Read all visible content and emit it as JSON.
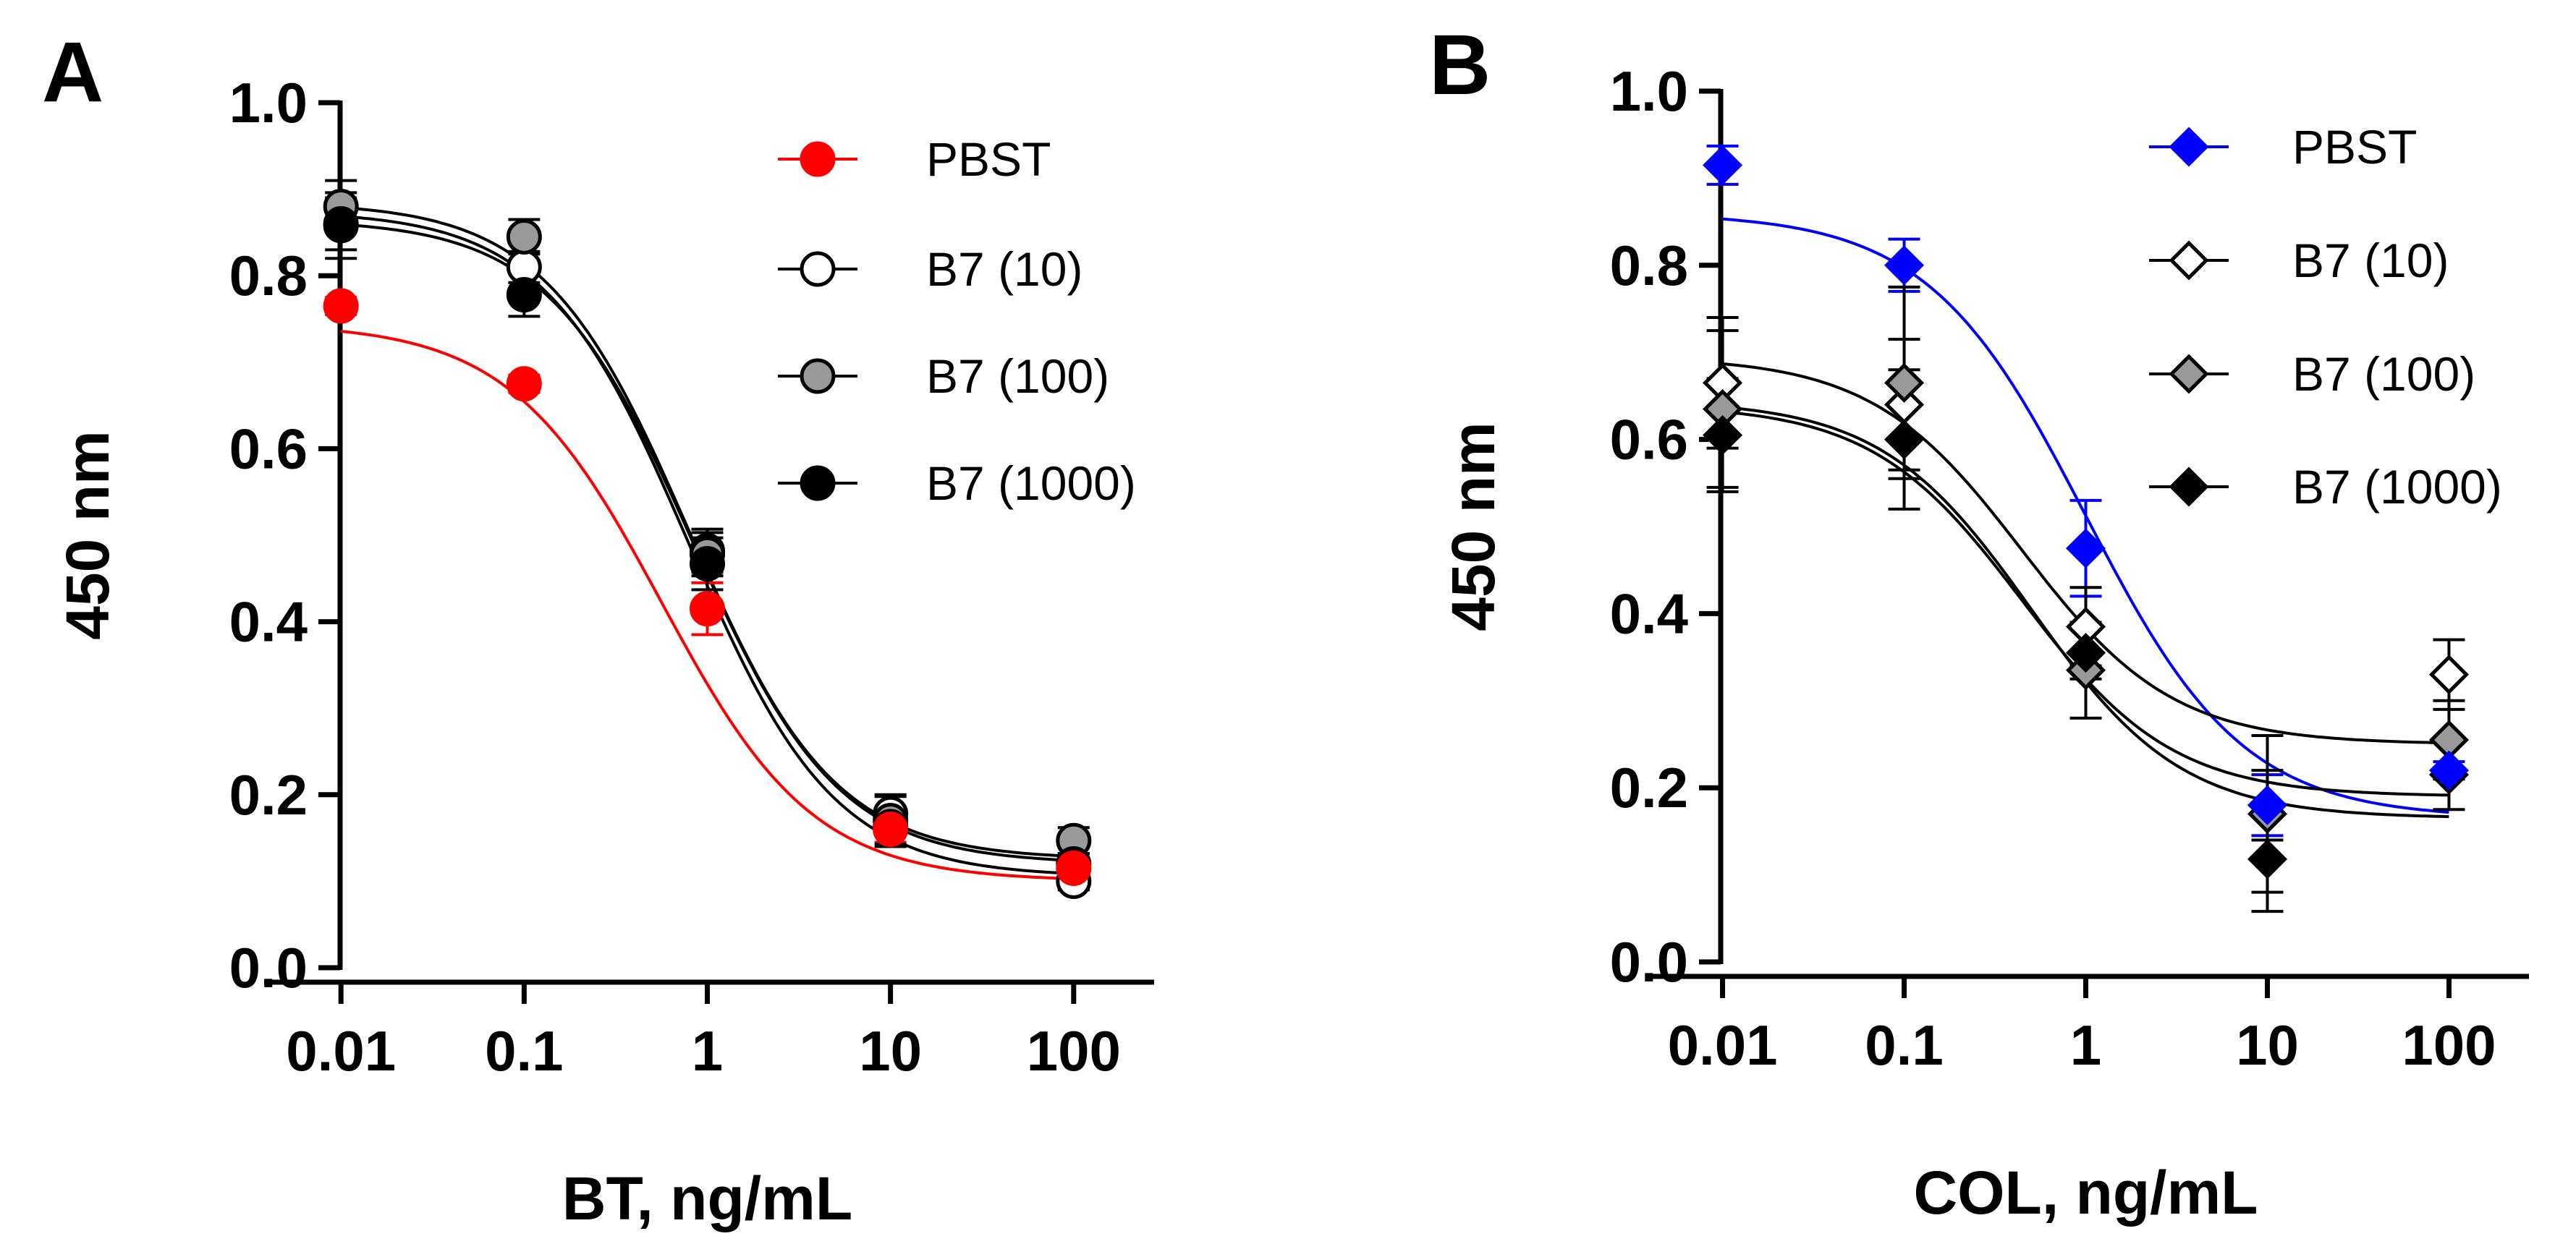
{
  "chart_data": [
    {
      "type": "scatter",
      "panel_label": "A",
      "title": "",
      "xlabel": "BT, ng/mL",
      "ylabel": "450 nm",
      "xscale": "log",
      "xlim": [
        0.005,
        200
      ],
      "ylim": [
        0,
        1.0
      ],
      "x": [
        0.01,
        0.1,
        1,
        10,
        100
      ],
      "x_tick_labels": [
        "0.01",
        "0.1",
        "1",
        "10",
        "100"
      ],
      "y_tick_values": [
        0,
        0.2,
        0.4,
        0.6,
        0.8,
        1.0
      ],
      "y_tick_labels": [
        "0.0",
        "0.2",
        "0.4",
        "0.6",
        "0.8",
        "1.0"
      ],
      "legend_position": "top-right",
      "grid": false,
      "series": [
        {
          "name": "PBST",
          "marker": "circle",
          "color": "#ff0000",
          "fill": "#ff0000",
          "values": [
            0.765,
            0.675,
            0.415,
            0.16,
            0.115
          ],
          "errors": [
            0.01,
            0.01,
            0.03,
            0.015,
            0.01
          ],
          "fit": {
            "top": 0.745,
            "bottom": 0.1,
            "logEC50": -0.25,
            "hill": 1.05
          }
        },
        {
          "name": "B7 (10)",
          "marker": "circle",
          "color": "#000000",
          "fill": "#ffffff",
          "values": [
            0.858,
            0.81,
            0.482,
            0.178,
            0.1
          ],
          "errors": [
            0.038,
            0.018,
            0.025,
            0.02,
            0.01
          ],
          "fit": {
            "top": 0.875,
            "bottom": 0.105,
            "logEC50": -0.1,
            "hill": 1.1
          }
        },
        {
          "name": "B7 (100)",
          "marker": "circle",
          "color": "#000000",
          "fill": "#999999",
          "values": [
            0.88,
            0.845,
            0.478,
            0.17,
            0.147
          ],
          "errors": [
            0.03,
            0.02,
            0.025,
            0.03,
            0.015
          ],
          "fit": {
            "top": 0.885,
            "bottom": 0.125,
            "logEC50": -0.1,
            "hill": 1.1
          }
        },
        {
          "name": "B7 (1000)",
          "marker": "circle",
          "color": "#000000",
          "fill": "#000000",
          "values": [
            0.86,
            0.778,
            0.467,
            0.163,
            0.12
          ],
          "errors": [
            0.03,
            0.025,
            0.03,
            0.02,
            0.012
          ],
          "fit": {
            "top": 0.865,
            "bottom": 0.12,
            "logEC50": -0.08,
            "hill": 1.1
          }
        }
      ]
    },
    {
      "type": "scatter",
      "panel_label": "B",
      "title": "",
      "xlabel": "COL, ng/mL",
      "ylabel": "450 nm",
      "xscale": "log",
      "xlim": [
        0.005,
        200
      ],
      "ylim": [
        0,
        1.0
      ],
      "x": [
        0.01,
        0.1,
        1,
        10,
        100
      ],
      "x_tick_labels": [
        "0.01",
        "0.1",
        "1",
        "10",
        "100"
      ],
      "y_tick_values": [
        0,
        0.2,
        0.4,
        0.6,
        0.8,
        1.0
      ],
      "y_tick_labels": [
        "0.0",
        "0.2",
        "0.4",
        "0.6",
        "0.8",
        "1.0"
      ],
      "legend_position": "top-right",
      "grid": false,
      "series": [
        {
          "name": "PBST",
          "marker": "diamond",
          "color": "#0000ff",
          "fill": "#0000ff",
          "values": [
            0.915,
            0.8,
            0.475,
            0.18,
            0.22
          ],
          "errors": [
            0.022,
            0.03,
            0.055,
            0.035,
            0.01
          ],
          "fit": {
            "top": 0.86,
            "bottom": 0.165,
            "logEC50": 0.0,
            "hill": 1.0
          }
        },
        {
          "name": "B7 (10)",
          "marker": "diamond",
          "color": "#000000",
          "fill": "#ffffff",
          "values": [
            0.665,
            0.64,
            0.385,
            0.18,
            0.33
          ],
          "errors": [
            0.075,
            0.075,
            0.045,
            0.04,
            0.04
          ],
          "fit": {
            "top": 0.695,
            "bottom": 0.25,
            "logEC50": -0.35,
            "hill": 1.05
          }
        },
        {
          "name": "B7 (100)",
          "marker": "diamond",
          "color": "#000000",
          "fill": "#999999",
          "values": [
            0.635,
            0.665,
            0.335,
            0.17,
            0.255
          ],
          "errors": [
            0.09,
            0.11,
            0.055,
            0.09,
            0.045
          ],
          "fit": {
            "top": 0.64,
            "bottom": 0.19,
            "logEC50": -0.35,
            "hill": 1.05
          }
        },
        {
          "name": "B7 (1000)",
          "marker": "diamond",
          "color": "#000000",
          "fill": "#000000",
          "values": [
            0.605,
            0.6,
            0.355,
            0.118,
            0.215
          ],
          "errors": [
            0.065,
            0.08,
            0.03,
            0.06,
            0.04
          ],
          "fit": {
            "top": 0.645,
            "bottom": 0.165,
            "logEC50": -0.3,
            "hill": 1.05
          }
        }
      ]
    }
  ]
}
